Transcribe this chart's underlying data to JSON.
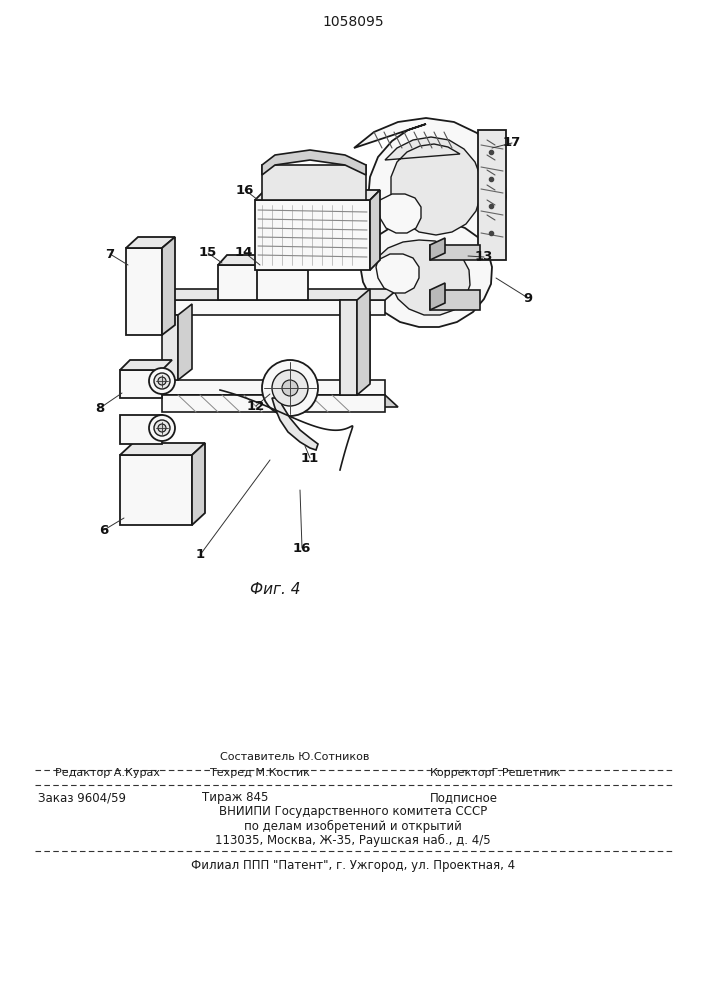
{
  "patent_number": "1058095",
  "figure_caption": "Фиг. 4",
  "bg_color": "#ffffff",
  "text_color": "#1a1a1a",
  "line_color": "#1a1a1a",
  "footer": {
    "sestavitel_label": "Составитель Ю.Сотников",
    "redaktor_label": "Редактор А.Курах",
    "tekhred_label": "Техред М.Костик",
    "korrektor_label": "КорректорГ.Решетник",
    "zakaz": "Заказ 9604/59",
    "tirazh": "Тираж 845",
    "podpisnoe": "Подписное",
    "vniipи": "ВНИИПИ Государственного комитета СССР",
    "po_delam": "по делам изобретений и открытий",
    "address": "113035, Москва, Ж-35, Раушская наб., д. 4/5",
    "filial": "Филиал ППП \"Патент\", г. Ужгород, ул. Проектная, 4"
  }
}
